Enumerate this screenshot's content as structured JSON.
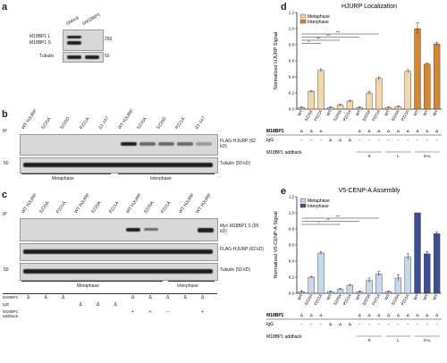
{
  "panel_a": {
    "label": "a",
    "lanes": [
      "ΔMock",
      "ΔM18BP1"
    ],
    "bands": [
      "M18BP1 L",
      "M18BP1 S",
      "Tubulin"
    ],
    "mw": [
      "250",
      "50"
    ]
  },
  "panel_b": {
    "label": "b",
    "side": "IP",
    "lanes": [
      "WT HJURP",
      "S220A",
      "S220D",
      "P221A",
      "Δ1-147",
      "WT HJURP",
      "S220A",
      "S220D",
      "P221A",
      "Δ1-147"
    ],
    "bands": [
      "FLAG-HJURP (62 kD)",
      "Tubulin (50 kD)"
    ],
    "mw": [
      "50"
    ],
    "phases": [
      "Metaphase",
      "Interphase"
    ]
  },
  "panel_c": {
    "label": "c",
    "side": "IP",
    "lanes": [
      "WT HJURP",
      "S220A",
      "P221A",
      "WT HJURP",
      "S220A",
      "P221A",
      "WT HJURP",
      "S220A",
      "P221A",
      "WT HJURP",
      "WT HJURP"
    ],
    "bands": [
      "Myc-M18BP1 S (95 kD)",
      "FLAG-HJURP (62 kD)",
      "Tubulin (50 kD)"
    ],
    "mw": [
      "50"
    ],
    "phases": [
      "Metaphase",
      "Interphase"
    ],
    "rows": [
      {
        "name": "M18BP1",
        "cells": [
          "Δ",
          "Δ",
          "Δ",
          "",
          "",
          "",
          "Δ",
          "Δ",
          "Δ",
          "Δ",
          "Δ"
        ]
      },
      {
        "name": "IgG",
        "cells": [
          "",
          "",
          "",
          "Δ",
          "Δ",
          "Δ",
          "",
          "",
          "",
          "",
          ""
        ]
      },
      {
        "name": "M18BP1 addback",
        "cells": [
          "",
          "",
          "",
          "",
          "",
          "",
          "+",
          "+",
          "−",
          "",
          "+"
        ]
      }
    ]
  },
  "panel_d": {
    "label": "d",
    "title": "HJURP Localization",
    "ylabel": "Normalized HJURP Signal",
    "legend": [
      "Metaphase",
      "Interphase"
    ],
    "rows": [
      "M18BP1",
      "IgG",
      "M18BP1 addback"
    ],
    "addback_groups": [
      "S",
      "L",
      "S+L"
    ],
    "colors": {
      "metaphase": "#f3d7a6",
      "interphase": "#d8852d"
    }
  },
  "panel_e": {
    "label": "e",
    "title": "V5-CENP-A Assembly",
    "ylabel": "Normalized V5-CENP-A Signal",
    "legend": [
      "Metaphase",
      "Interphase"
    ],
    "rows": [
      "M18BP1",
      "IgG",
      "M18BP1 addback"
    ],
    "addback_groups": [
      "S",
      "L",
      "S+L"
    ],
    "colors": {
      "metaphase": "#c6d8ee",
      "interphase": "#3d4f94"
    }
  },
  "chart_data": [
    {
      "type": "bar",
      "title": "HJURP Localization",
      "ylabel": "Normalized HJURP Signal",
      "categories": [
        "WT",
        "S220A",
        "P221A",
        "WT",
        "S220A",
        "P221A",
        "WT",
        "S220A",
        "P221A",
        "WT",
        "S220A",
        "P221A",
        "WT",
        "WT",
        "WT"
      ],
      "series": [
        {
          "name": "Metaphase",
          "values": [
            0.02,
            0.22,
            0.48,
            0.02,
            0.05,
            0.1,
            0.02,
            0.2,
            0.38,
            0.02,
            0.03,
            0.47,
            1.0,
            0.56,
            0.81
          ],
          "errors": [
            0.01,
            0.01,
            0.02,
            0.01,
            0.01,
            0.01,
            0.01,
            0.02,
            0.02,
            0.01,
            0.01,
            0.02,
            0.07,
            0.01,
            0.02
          ],
          "phase": [
            "m",
            "m",
            "m",
            "m",
            "m",
            "m",
            "m",
            "m",
            "m",
            "m",
            "m",
            "m",
            "i",
            "i",
            "i"
          ]
        }
      ],
      "ylim": [
        0,
        1.2
      ],
      "significance": [
        "***",
        "***",
        "***",
        "**"
      ]
    },
    {
      "type": "bar",
      "title": "V5-CENP-A Assembly",
      "ylabel": "Normalized V5-CENP-A Signal",
      "categories": [
        "WT",
        "S220A",
        "P221A",
        "WT",
        "S220A",
        "P221A",
        "WT",
        "S220A",
        "P221A",
        "WT",
        "S220A",
        "P221A",
        "WT",
        "WT",
        "WT"
      ],
      "series": [
        {
          "name": "Metaphase",
          "values": [
            0.02,
            0.2,
            0.5,
            0.02,
            0.05,
            0.1,
            0.02,
            0.16,
            0.24,
            0.02,
            0.19,
            0.45,
            1.0,
            0.49,
            0.74
          ],
          "errors": [
            0.01,
            0.01,
            0.02,
            0.01,
            0.01,
            0.01,
            0.01,
            0.03,
            0.03,
            0.01,
            0.04,
            0.04,
            0.0,
            0.03,
            0.02
          ],
          "phase": [
            "m",
            "m",
            "m",
            "m",
            "m",
            "m",
            "m",
            "m",
            "m",
            "m",
            "m",
            "m",
            "i",
            "i",
            "i"
          ]
        }
      ],
      "ylim": [
        0,
        1.2
      ],
      "significance": [
        "***",
        "**",
        "*"
      ]
    }
  ]
}
